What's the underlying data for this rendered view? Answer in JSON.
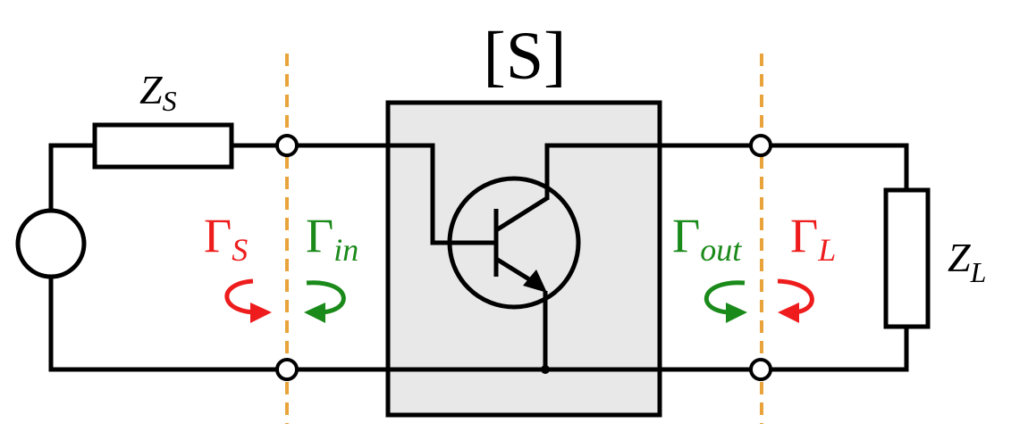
{
  "labels": {
    "s_matrix": "[S]",
    "z_source": {
      "base": "Z",
      "sub": "S"
    },
    "z_load": {
      "base": "Z",
      "sub": "L"
    },
    "gamma_s": {
      "base": "Γ",
      "sub": "S"
    },
    "gamma_in": {
      "base": "Γ",
      "sub": "in"
    },
    "gamma_out": {
      "base": "Γ",
      "sub": "out"
    },
    "gamma_l": {
      "base": "Γ",
      "sub": "L"
    }
  },
  "colors": {
    "red": "#ee1c1c",
    "green": "#1a8a1a",
    "reference_plane": "#e8a33a",
    "two_port_fill": "#e8e8e8"
  }
}
